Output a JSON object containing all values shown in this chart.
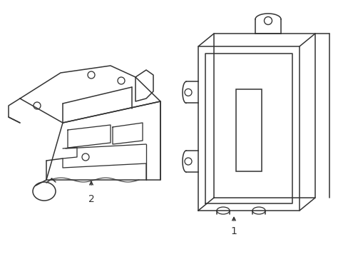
{
  "background_color": "#ffffff",
  "line_color": "#333333",
  "line_width": 1.1,
  "label1": "1",
  "label2": "2",
  "label_fontsize": 10,
  "figsize": [
    4.89,
    3.6
  ],
  "dpi": 100
}
